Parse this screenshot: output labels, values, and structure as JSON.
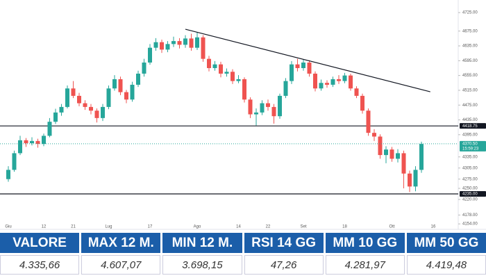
{
  "chart_data": {
    "type": "candlestick",
    "categories": [
      "Giu",
      null,
      null,
      null,
      null,
      null,
      "12",
      null,
      null,
      null,
      null,
      "21",
      null,
      null,
      null,
      null,
      null,
      "Lug",
      null,
      null,
      null,
      null,
      null,
      null,
      "17",
      null,
      null,
      null,
      null,
      null,
      null,
      null,
      "Ago",
      null,
      null,
      null,
      null,
      null,
      null,
      "14",
      null,
      null,
      null,
      null,
      "22",
      null,
      null,
      null,
      null,
      null,
      "Set",
      null,
      null,
      null,
      null,
      null,
      null,
      "18",
      null,
      null,
      null,
      null,
      null,
      null,
      null,
      "Ott",
      null,
      null,
      null,
      null,
      null,
      null,
      "16",
      null
    ],
    "open": [
      4275,
      4300,
      4345,
      4380,
      4372,
      4378,
      4370,
      4392,
      4430,
      4455,
      4470,
      4520,
      4500,
      4480,
      4470,
      4460,
      4440,
      4470,
      4520,
      4545,
      4510,
      4490,
      4530,
      4560,
      4590,
      4630,
      4645,
      4625,
      4640,
      4648,
      4638,
      4655,
      4630,
      4658,
      4600,
      4575,
      4585,
      4560,
      4565,
      4540,
      4545,
      4490,
      4450,
      4455,
      4480,
      4470,
      4445,
      4500,
      4540,
      4585,
      4575,
      4590,
      4560,
      4520,
      4535,
      4530,
      4545,
      4540,
      4555,
      4520,
      4500,
      4460,
      4400,
      4390,
      4340,
      4355,
      4330,
      4345,
      4290,
      4255,
      4300,
      null,
      null,
      null
    ],
    "high": [
      4310,
      4352,
      4392,
      4386,
      4388,
      4384,
      4398,
      4440,
      4465,
      4478,
      4528,
      4540,
      4508,
      4488,
      4478,
      4466,
      4478,
      4528,
      4556,
      4552,
      4516,
      4538,
      4568,
      4600,
      4640,
      4656,
      4652,
      4648,
      4660,
      4656,
      4664,
      4668,
      4672,
      4664,
      4608,
      4594,
      4592,
      4574,
      4572,
      4556,
      4550,
      4496,
      4466,
      4488,
      4490,
      4478,
      4506,
      4548,
      4594,
      4600,
      4598,
      4596,
      4566,
      4544,
      4542,
      4552,
      4556,
      4562,
      4560,
      4526,
      4506,
      4466,
      4410,
      4396,
      4364,
      4362,
      4356,
      4352,
      4298,
      4310,
      4376,
      null,
      null,
      null
    ],
    "low": [
      4268,
      4295,
      4340,
      4362,
      4366,
      4360,
      4364,
      4388,
      4424,
      4446,
      4466,
      4494,
      4472,
      4462,
      4450,
      4428,
      4432,
      4464,
      4514,
      4502,
      4480,
      4484,
      4524,
      4552,
      4584,
      4622,
      4616,
      4618,
      4632,
      4628,
      4630,
      4622,
      4624,
      4592,
      4566,
      4568,
      4550,
      4552,
      4532,
      4534,
      4482,
      4440,
      4420,
      4448,
      4460,
      4425,
      4438,
      4494,
      4532,
      4566,
      4568,
      4552,
      4512,
      4514,
      4522,
      4524,
      4532,
      4534,
      4514,
      4494,
      4452,
      4392,
      4378,
      4330,
      4318,
      4322,
      4320,
      4250,
      4240,
      4242,
      4292,
      null,
      null,
      null
    ],
    "close": [
      4300,
      4345,
      4380,
      4372,
      4378,
      4370,
      4392,
      4430,
      4455,
      4470,
      4520,
      4500,
      4480,
      4470,
      4460,
      4440,
      4470,
      4520,
      4545,
      4510,
      4490,
      4530,
      4560,
      4590,
      4630,
      4645,
      4625,
      4640,
      4648,
      4638,
      4655,
      4630,
      4658,
      4600,
      4575,
      4585,
      4560,
      4565,
      4540,
      4545,
      4490,
      4450,
      4455,
      4480,
      4470,
      4445,
      4500,
      4540,
      4585,
      4575,
      4590,
      4560,
      4520,
      4535,
      4530,
      4545,
      4540,
      4555,
      4520,
      4500,
      4460,
      4400,
      4390,
      4340,
      4355,
      4330,
      4345,
      4290,
      4255,
      4300,
      4370,
      null,
      null,
      null
    ],
    "up_color": "#26a69a",
    "down_color": "#ef5350",
    "ylim": [
      4143,
      4759
    ],
    "yticks": [
      {
        "value": 4725,
        "label": "4725.00"
      },
      {
        "value": 4675,
        "label": "4675.00"
      },
      {
        "value": 4635,
        "label": "4635.00"
      },
      {
        "value": 4595,
        "label": "4595.00"
      },
      {
        "value": 4555,
        "label": "4555.00"
      },
      {
        "value": 4515,
        "label": "4515.00"
      },
      {
        "value": 4475,
        "label": "4475.00"
      },
      {
        "value": 4435,
        "label": "4435.00"
      },
      {
        "value": 4395,
        "label": "4395.00"
      },
      {
        "value": 4335,
        "label": "4335.00"
      },
      {
        "value": 4305,
        "label": "4305.00"
      },
      {
        "value": 4275,
        "label": "4275.00"
      },
      {
        "value": 4250,
        "label": "4250.00"
      },
      {
        "value": 4220,
        "label": "4220.00"
      },
      {
        "value": 4178,
        "label": "4178.00"
      },
      {
        "value": 4154,
        "label": "4154.00"
      }
    ],
    "hlines": [
      4418.75,
      4235
    ],
    "trendline": {
      "x": [
        30,
        71.5
      ],
      "y": [
        4680,
        4511
      ]
    },
    "price_labels": [
      {
        "value": 4418.75,
        "label": "4418.75",
        "color": "#131722"
      },
      {
        "value": 4370.5,
        "label": "4370.50",
        "color": "#26a69a",
        "time": "15:59:23"
      },
      {
        "value": 4235,
        "label": "4235.00",
        "color": "#131722"
      }
    ]
  },
  "table": {
    "header": [
      "VALORE",
      "MAX 12 M.",
      "MIN 12 M.",
      "RSI 14 GG",
      "MM 10 GG",
      "MM 50 GG"
    ],
    "rows": [
      [
        "4.335,66",
        "4.607,07",
        "3.698,15",
        "47,26",
        "4.281,97",
        "4.419,48"
      ]
    ]
  }
}
